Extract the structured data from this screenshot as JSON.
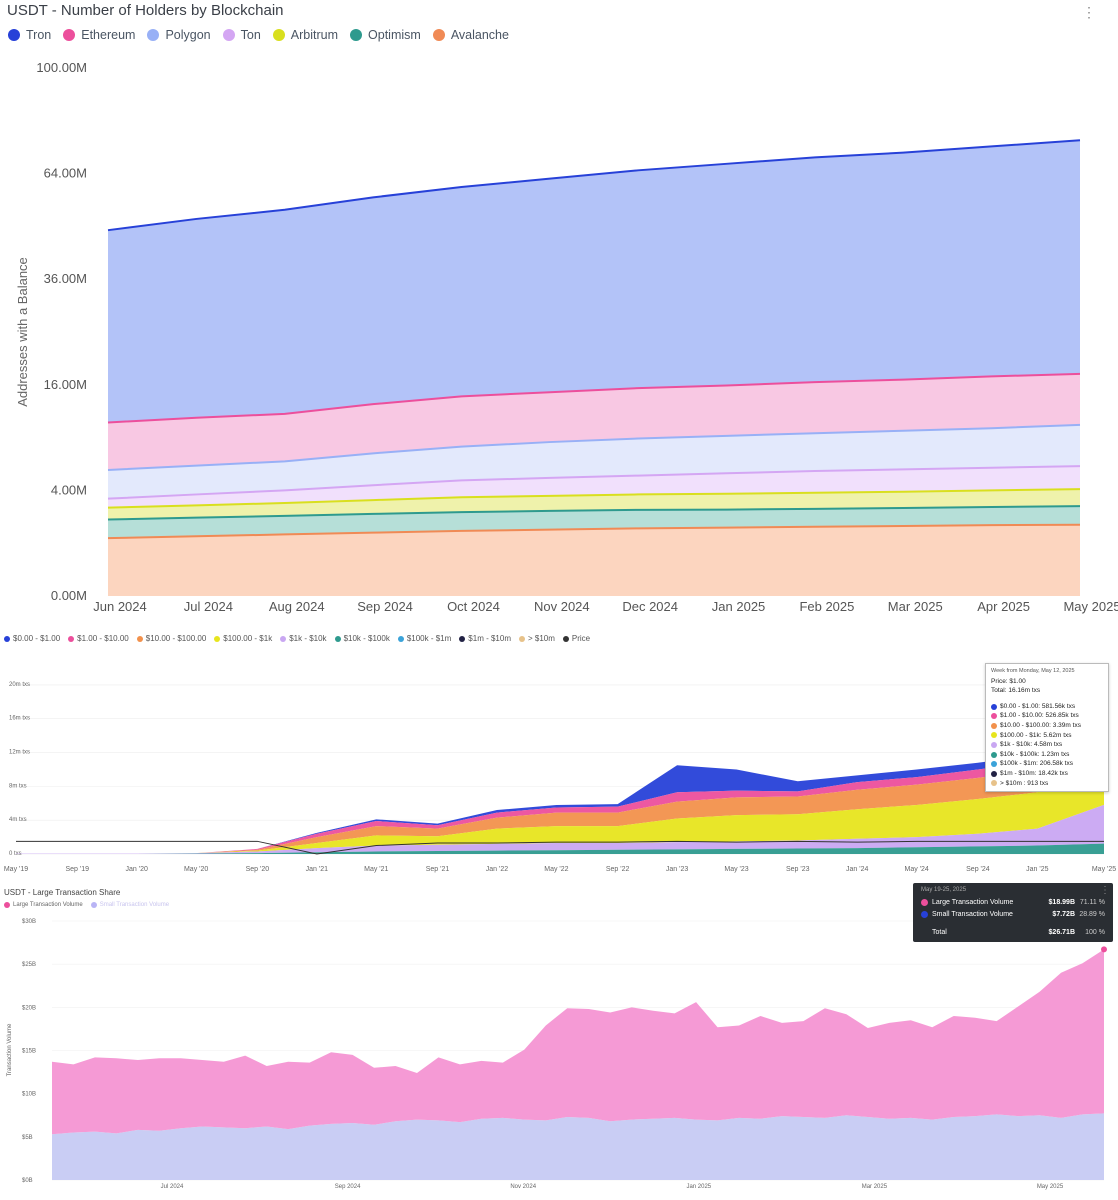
{
  "holders": {
    "title": "USDT - Number of Holders by Blockchain",
    "menu_icon": "more-vertical-icon",
    "legend": [
      {
        "name": "Tron",
        "color": "#2741d8"
      },
      {
        "name": "Ethereum",
        "color": "#ec4f9c"
      },
      {
        "name": "Polygon",
        "color": "#98b0f6"
      },
      {
        "name": "Ton",
        "color": "#d4a6f3"
      },
      {
        "name": "Arbitrum",
        "color": "#d9df1e"
      },
      {
        "name": "Optimism",
        "color": "#2e9a8e"
      },
      {
        "name": "Avalanche",
        "color": "#f08a55"
      }
    ]
  },
  "volume": {
    "legend": [
      {
        "name": "$0.00 - $1.00",
        "color": "#2741d8"
      },
      {
        "name": "$1.00 - $10.00",
        "color": "#ec4f9c"
      },
      {
        "name": "$10.00 - $100.00",
        "color": "#f2914c"
      },
      {
        "name": "$100.00 - $1k",
        "color": "#e7e51e"
      },
      {
        "name": "$1k - $10k",
        "color": "#c9a7f2"
      },
      {
        "name": "$10k - $100k",
        "color": "#2e9a8e"
      },
      {
        "name": "$100k - $1m",
        "color": "#3ba3d9"
      },
      {
        "name": "$1m - $10m",
        "color": "#222244"
      },
      {
        "name": "> $10m",
        "color": "#e7c28a"
      },
      {
        "name": "Price",
        "color": "#333333"
      }
    ],
    "tooltip": {
      "header": "Week from Monday, May 12, 2025",
      "price": "Price: $1.00",
      "total": "Total: 16.16m txs",
      "rows": [
        {
          "text": "$0.00 - $1.00: 581.56k txs",
          "color": "#2741d8"
        },
        {
          "text": "$1.00 - $10.00: 526.85k txs",
          "color": "#ec4f9c"
        },
        {
          "text": "$10.00 - $100.00: 3.39m txs",
          "color": "#f2914c"
        },
        {
          "text": "$100.00 - $1k: 5.62m txs",
          "color": "#e7e51e"
        },
        {
          "text": "$1k - $10k: 4.58m txs",
          "color": "#c9a7f2"
        },
        {
          "text": "$10k - $100k: 1.23m txs",
          "color": "#2e9a8e"
        },
        {
          "text": "$100k - $1m: 206.58k txs",
          "color": "#3ba3d9"
        },
        {
          "text": "$1m - $10m: 18.42k txs",
          "color": "#222244"
        },
        {
          "text": "> $10m : 913 txs",
          "color": "#e7c28a"
        }
      ]
    }
  },
  "share": {
    "title": "USDT - Large Transaction Share",
    "legend": [
      {
        "name": "Large Transaction Volume",
        "color": "#ec4f9c"
      },
      {
        "name": "Small Transaction Volume",
        "color": "#b9b4f5"
      }
    ],
    "tooltip": {
      "header": "May 19-25, 2025",
      "rows": [
        {
          "name": "Large Transaction Volume",
          "value": "$18.99B",
          "pct": "71.11 %",
          "color": "#ec4f9c"
        },
        {
          "name": "Small Transaction Volume",
          "value": "$7.72B",
          "pct": "28.89 %",
          "color": "#2741d8"
        }
      ],
      "total_label": "Total",
      "total_value": "$26.71B",
      "total_pct": "100 %"
    }
  },
  "chart_data": [
    {
      "type": "area",
      "stacked": true,
      "title": "USDT - Number of Holders by Blockchain",
      "ylabel": "Addresses with a Balance",
      "y_scale": "sqrt",
      "yticks": [
        "0.00M",
        "4.00M",
        "16.00M",
        "36.00M",
        "64.00M",
        "100.00M"
      ],
      "ytick_values": [
        0,
        4,
        16,
        36,
        64,
        100
      ],
      "ylim": [
        0,
        100
      ],
      "categories": [
        "Jun 2024",
        "Jul 2024",
        "Aug 2024",
        "Sep 2024",
        "Oct 2024",
        "Nov 2024",
        "Dec 2024",
        "Jan 2025",
        "Feb 2025",
        "Mar 2025",
        "Apr 2025",
        "May 2025"
      ],
      "cumulative_series": [
        {
          "name": "Avalanche",
          "color": "#f08a55",
          "fill": "#fcd5bf",
          "values": [
            1.2,
            1.28,
            1.36,
            1.44,
            1.52,
            1.58,
            1.64,
            1.68,
            1.72,
            1.76,
            1.8,
            1.82
          ]
        },
        {
          "name": "Optimism",
          "color": "#2e9a8e",
          "fill": "#b6dfd8",
          "values": [
            2.1,
            2.2,
            2.3,
            2.42,
            2.52,
            2.6,
            2.66,
            2.68,
            2.72,
            2.78,
            2.84,
            2.9
          ]
        },
        {
          "name": "Arbitrum",
          "color": "#d9df1e",
          "fill": "#eff2ab",
          "values": [
            2.8,
            2.95,
            3.1,
            3.3,
            3.5,
            3.6,
            3.7,
            3.75,
            3.82,
            3.9,
            4.0,
            4.1
          ]
        },
        {
          "name": "Ton",
          "color": "#d4a6f3",
          "fill": "#f1e0fc",
          "values": [
            3.4,
            3.7,
            4.0,
            4.4,
            4.8,
            5.0,
            5.2,
            5.4,
            5.6,
            5.75,
            5.9,
            6.05
          ]
        },
        {
          "name": "Polygon",
          "color": "#98b0f6",
          "fill": "#e3e9fc",
          "values": [
            5.7,
            6.1,
            6.5,
            7.3,
            8.0,
            8.5,
            8.9,
            9.2,
            9.5,
            9.8,
            10.1,
            10.5
          ]
        },
        {
          "name": "Ethereum",
          "color": "#ec4f9c",
          "fill": "#f8c8e3",
          "values": [
            10.8,
            11.4,
            11.9,
            13.2,
            14.3,
            14.9,
            15.5,
            15.9,
            16.4,
            16.8,
            17.3,
            17.7
          ]
        },
        {
          "name": "Tron",
          "color": "#2741d8",
          "fill": "#b3c3f8",
          "values": [
            48.0,
            51.0,
            53.5,
            57.0,
            60.0,
            62.5,
            65.0,
            67.0,
            69.0,
            70.5,
            72.5,
            74.5
          ]
        }
      ]
    },
    {
      "type": "area",
      "stacked": true,
      "ylabel": "",
      "yticks": [
        "0 txs",
        "4m txs",
        "8m txs",
        "12m txs",
        "16m txs",
        "20m txs"
      ],
      "ytick_values": [
        0,
        4,
        8,
        12,
        16,
        20
      ],
      "ylim": [
        0,
        22
      ],
      "xticks": [
        "May '19",
        "Sep '19",
        "Jan '20",
        "May '20",
        "Sep '20",
        "Jan '21",
        "May '21",
        "Sep '21",
        "Jan '22",
        "May '22",
        "Sep '22",
        "Jan '23",
        "May '23",
        "Sep '23",
        "Jan '24",
        "May '24",
        "Sep '24",
        "Jan '25",
        "May '25"
      ],
      "x": [
        2019.33,
        2019.67,
        2020.0,
        2020.33,
        2020.67,
        2021.0,
        2021.33,
        2021.67,
        2022.0,
        2022.33,
        2022.67,
        2023.0,
        2023.33,
        2023.67,
        2024.0,
        2024.33,
        2024.67,
        2025.0,
        2025.37
      ],
      "cumulative_series": [
        {
          "name": "$10k - $100k",
          "color": "#2e9a8e",
          "values": [
            0.0,
            0.0,
            0.0,
            0.05,
            0.1,
            0.2,
            0.3,
            0.35,
            0.4,
            0.45,
            0.5,
            0.55,
            0.6,
            0.65,
            0.7,
            0.8,
            0.9,
            1.0,
            1.23
          ]
        },
        {
          "name": "$1k - $10k",
          "color": "#c9a7f2",
          "values": [
            0.05,
            0.05,
            0.05,
            0.1,
            0.3,
            0.7,
            1.0,
            1.1,
            1.2,
            1.3,
            1.3,
            1.4,
            1.5,
            1.6,
            1.8,
            2.0,
            2.4,
            3.0,
            5.81
          ]
        },
        {
          "name": "$100.00 - $1k",
          "color": "#e7e51e",
          "values": [
            0.05,
            0.05,
            0.05,
            0.1,
            0.4,
            1.3,
            2.2,
            2.1,
            3.0,
            3.3,
            3.3,
            4.2,
            4.6,
            4.7,
            5.3,
            5.8,
            6.5,
            7.3,
            11.43
          ]
        },
        {
          "name": "$10.00 - $100.00",
          "color": "#f2914c",
          "values": [
            0.05,
            0.05,
            0.05,
            0.1,
            0.5,
            2.0,
            3.3,
            3.0,
            4.3,
            4.9,
            4.9,
            6.2,
            6.7,
            6.8,
            7.6,
            8.2,
            9.0,
            9.9,
            14.82
          ]
        },
        {
          "name": "$1.00 - $10.00",
          "color": "#ec4f9c",
          "values": [
            0.05,
            0.05,
            0.05,
            0.1,
            0.6,
            2.4,
            3.9,
            3.4,
            4.9,
            5.5,
            5.6,
            7.3,
            7.5,
            7.4,
            8.5,
            9.1,
            10.0,
            10.9,
            15.35
          ]
        },
        {
          "name": "$0.00 - $1.00",
          "color": "#2741d8",
          "values": [
            0.05,
            0.05,
            0.05,
            0.1,
            0.6,
            2.5,
            4.1,
            3.6,
            5.2,
            5.8,
            5.9,
            10.5,
            10.0,
            8.6,
            9.3,
            10.0,
            10.8,
            11.7,
            16.16
          ]
        }
      ],
      "price_series": {
        "name": "Price",
        "color": "#333333",
        "values": [
          1.5,
          1.5,
          1.5,
          1.5,
          1.5,
          0.0,
          1.0,
          1.3,
          1.3,
          1.4,
          1.4,
          1.5,
          1.4,
          1.5,
          1.4,
          1.5,
          1.5,
          1.5,
          1.5
        ]
      }
    },
    {
      "type": "area",
      "stacked": true,
      "title": "USDT - Large Transaction Share",
      "ylabel": "Transaction Volume",
      "yticks": [
        "$0B",
        "$5B",
        "$10B",
        "$15B",
        "$20B",
        "$25B",
        "$30B"
      ],
      "ytick_values": [
        0,
        5,
        10,
        15,
        20,
        25,
        30
      ],
      "ylim": [
        0,
        30
      ],
      "xticks": [
        "Jul 2024",
        "Sep 2024",
        "Nov 2024",
        "Jan 2025",
        "Mar 2025",
        "May 2025"
      ],
      "series": [
        {
          "name": "Small Transaction Volume",
          "color": "#b9b4f5",
          "values": [
            5.3,
            5.5,
            5.6,
            5.4,
            5.8,
            5.7,
            6.0,
            6.2,
            6.1,
            6.0,
            6.2,
            5.9,
            6.3,
            6.5,
            6.6,
            6.4,
            6.8,
            7.0,
            6.9,
            6.7,
            7.1,
            7.2,
            7.0,
            6.9,
            7.3,
            7.2,
            6.8,
            7.0,
            7.1,
            7.2,
            7.0,
            6.9,
            7.2,
            7.1,
            7.4,
            7.3,
            7.2,
            7.5,
            7.3,
            7.1,
            7.2,
            7.0,
            7.3,
            7.4,
            7.6,
            7.4,
            7.5,
            7.2,
            7.6,
            7.72
          ]
        },
        {
          "name": "Large Transaction Volume",
          "color": "#ec4f9c",
          "values": [
            8.4,
            7.9,
            8.6,
            8.7,
            8.1,
            8.4,
            8.1,
            7.7,
            7.6,
            8.4,
            7.0,
            7.8,
            7.3,
            8.3,
            7.9,
            6.6,
            6.4,
            5.4,
            7.3,
            6.7,
            6.7,
            6.4,
            8.1,
            11.0,
            12.6,
            12.6,
            12.6,
            13.0,
            12.5,
            12.1,
            13.6,
            10.8,
            10.7,
            11.9,
            10.8,
            11.1,
            12.7,
            11.7,
            10.3,
            11.1,
            11.3,
            10.7,
            11.7,
            11.4,
            10.8,
            12.7,
            14.3,
            16.8,
            17.5,
            18.99
          ]
        }
      ]
    }
  ]
}
